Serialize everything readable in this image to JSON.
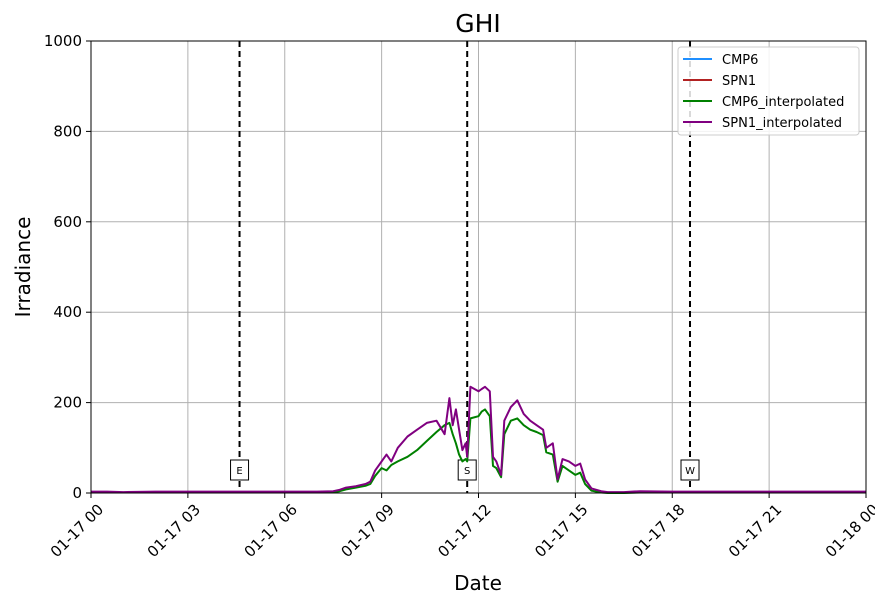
{
  "chart_data": {
    "type": "line",
    "title": "GHI",
    "xlabel": "Date",
    "ylabel": "Irradiance",
    "x_range": [
      "01-17 00:00",
      "01-18 00:00"
    ],
    "ylim": [
      0,
      1000
    ],
    "grid": true,
    "legend_position": "top-right",
    "x_ticks": [
      {
        "hour": 0,
        "label": "01-17 00"
      },
      {
        "hour": 3,
        "label": "01-17 03"
      },
      {
        "hour": 6,
        "label": "01-17 06"
      },
      {
        "hour": 9,
        "label": "01-17 09"
      },
      {
        "hour": 12,
        "label": "01-17 12"
      },
      {
        "hour": 15,
        "label": "01-17 15"
      },
      {
        "hour": 18,
        "label": "01-17 18"
      },
      {
        "hour": 21,
        "label": "01-17 21"
      },
      {
        "hour": 24,
        "label": "01-18 00"
      }
    ],
    "y_ticks": [
      0,
      200,
      400,
      600,
      800,
      1000
    ],
    "vertical_markers": [
      {
        "label": "E",
        "hour": 4.6
      },
      {
        "label": "S",
        "hour": 11.65
      },
      {
        "label": "W",
        "hour": 18.55
      }
    ],
    "series": [
      {
        "name": "CMP6",
        "color": "#1f8fff",
        "points": []
      },
      {
        "name": "SPN1",
        "color": "#b22222",
        "points": []
      },
      {
        "name": "CMP6_interpolated",
        "color": "#008000",
        "points": [
          [
            0.0,
            1
          ],
          [
            0.5,
            1
          ],
          [
            1.0,
            1
          ],
          [
            2.0,
            1
          ],
          [
            3.0,
            1
          ],
          [
            4.0,
            1
          ],
          [
            5.0,
            1
          ],
          [
            6.0,
            1
          ],
          [
            7.0,
            1
          ],
          [
            7.5,
            2
          ],
          [
            7.7,
            4
          ],
          [
            7.9,
            8
          ],
          [
            8.2,
            12
          ],
          [
            8.5,
            16
          ],
          [
            8.65,
            20
          ],
          [
            8.8,
            38
          ],
          [
            9.0,
            55
          ],
          [
            9.15,
            50
          ],
          [
            9.3,
            62
          ],
          [
            9.5,
            70
          ],
          [
            9.8,
            80
          ],
          [
            10.1,
            95
          ],
          [
            10.4,
            115
          ],
          [
            10.7,
            135
          ],
          [
            10.95,
            150
          ],
          [
            11.1,
            155
          ],
          [
            11.2,
            130
          ],
          [
            11.3,
            110
          ],
          [
            11.4,
            85
          ],
          [
            11.5,
            70
          ],
          [
            11.6,
            75
          ],
          [
            11.65,
            70
          ],
          [
            11.75,
            165
          ],
          [
            12.0,
            170
          ],
          [
            12.1,
            180
          ],
          [
            12.2,
            185
          ],
          [
            12.35,
            170
          ],
          [
            12.45,
            60
          ],
          [
            12.55,
            55
          ],
          [
            12.7,
            35
          ],
          [
            12.8,
            130
          ],
          [
            13.0,
            160
          ],
          [
            13.2,
            165
          ],
          [
            13.4,
            150
          ],
          [
            13.6,
            140
          ],
          [
            13.8,
            135
          ],
          [
            14.0,
            128
          ],
          [
            14.1,
            90
          ],
          [
            14.3,
            85
          ],
          [
            14.45,
            25
          ],
          [
            14.6,
            60
          ],
          [
            14.8,
            50
          ],
          [
            15.0,
            40
          ],
          [
            15.15,
            45
          ],
          [
            15.3,
            20
          ],
          [
            15.5,
            5
          ],
          [
            15.8,
            1
          ],
          [
            16.0,
            0
          ],
          [
            16.5,
            0
          ],
          [
            17.0,
            1
          ],
          [
            18.0,
            1
          ],
          [
            19.0,
            1
          ],
          [
            20.0,
            1
          ],
          [
            21.0,
            1
          ],
          [
            22.0,
            1
          ],
          [
            23.0,
            1
          ],
          [
            24.0,
            1
          ]
        ]
      },
      {
        "name": "SPN1_interpolated",
        "color": "#800080",
        "points": [
          [
            0.0,
            3
          ],
          [
            0.5,
            3
          ],
          [
            1.0,
            2
          ],
          [
            2.0,
            3
          ],
          [
            3.0,
            3
          ],
          [
            4.0,
            3
          ],
          [
            5.0,
            3
          ],
          [
            6.0,
            3
          ],
          [
            7.0,
            3
          ],
          [
            7.5,
            4
          ],
          [
            7.7,
            7
          ],
          [
            7.9,
            12
          ],
          [
            8.2,
            15
          ],
          [
            8.5,
            20
          ],
          [
            8.65,
            25
          ],
          [
            8.8,
            50
          ],
          [
            9.0,
            70
          ],
          [
            9.15,
            85
          ],
          [
            9.3,
            70
          ],
          [
            9.5,
            100
          ],
          [
            9.8,
            125
          ],
          [
            10.1,
            140
          ],
          [
            10.4,
            155
          ],
          [
            10.7,
            160
          ],
          [
            10.95,
            130
          ],
          [
            11.1,
            210
          ],
          [
            11.2,
            150
          ],
          [
            11.3,
            185
          ],
          [
            11.4,
            140
          ],
          [
            11.5,
            95
          ],
          [
            11.6,
            110
          ],
          [
            11.65,
            80
          ],
          [
            11.75,
            235
          ],
          [
            12.0,
            225
          ],
          [
            12.1,
            230
          ],
          [
            12.2,
            235
          ],
          [
            12.35,
            225
          ],
          [
            12.45,
            80
          ],
          [
            12.55,
            70
          ],
          [
            12.7,
            40
          ],
          [
            12.8,
            160
          ],
          [
            13.0,
            190
          ],
          [
            13.2,
            205
          ],
          [
            13.4,
            175
          ],
          [
            13.6,
            160
          ],
          [
            13.8,
            150
          ],
          [
            14.0,
            140
          ],
          [
            14.1,
            100
          ],
          [
            14.3,
            110
          ],
          [
            14.45,
            30
          ],
          [
            14.6,
            75
          ],
          [
            14.8,
            70
          ],
          [
            15.0,
            60
          ],
          [
            15.15,
            65
          ],
          [
            15.3,
            30
          ],
          [
            15.5,
            10
          ],
          [
            15.8,
            4
          ],
          [
            16.0,
            2
          ],
          [
            16.5,
            2
          ],
          [
            17.0,
            4
          ],
          [
            18.0,
            3
          ],
          [
            19.0,
            3
          ],
          [
            20.0,
            3
          ],
          [
            21.0,
            3
          ],
          [
            22.0,
            3
          ],
          [
            23.0,
            3
          ],
          [
            24.0,
            3
          ]
        ]
      }
    ]
  }
}
